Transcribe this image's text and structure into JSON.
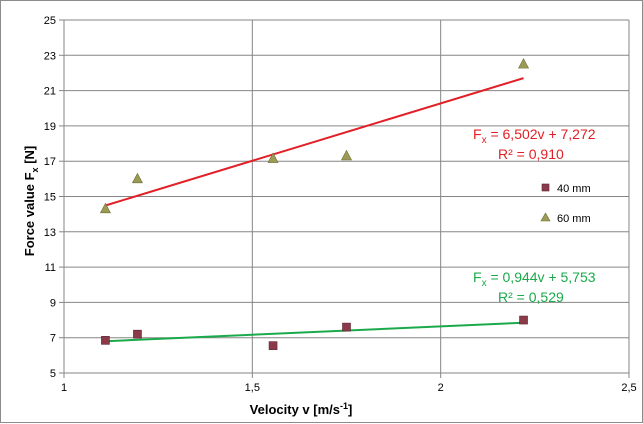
{
  "chart_data": {
    "type": "scatter",
    "xlabel": "Velocity v [m/s",
    "xlabel_sup": "-1",
    "xlabel_end": "]",
    "ylabel": "Force value F",
    "ylabel_sub": "x",
    "ylabel_end": " [N]",
    "xlim": [
      1,
      2.5
    ],
    "ylim": [
      5,
      25
    ],
    "x_ticks": [
      "1",
      "1,5",
      "2",
      "2,5"
    ],
    "x_tick_values": [
      1,
      1.5,
      2,
      2.5
    ],
    "y_ticks": [
      "5",
      "7",
      "9",
      "11",
      "13",
      "15",
      "17",
      "19",
      "21",
      "23",
      "25"
    ],
    "y_tick_values": [
      5,
      7,
      9,
      11,
      13,
      15,
      17,
      19,
      21,
      23,
      25
    ],
    "grid": "vertical-and-horizontal-major",
    "legend_position": "right",
    "series": [
      {
        "name": "40 mm",
        "marker": "square",
        "color": "#8B3A4A",
        "x": [
          1.11,
          1.195,
          1.555,
          1.75,
          2.22
        ],
        "y": [
          6.85,
          7.2,
          6.55,
          7.6,
          8.0
        ],
        "trend": {
          "slope": 0.944,
          "intercept": 5.753,
          "x_range": [
            1.11,
            2.22
          ],
          "color": "#1BAA4B",
          "equation_main": "F",
          "equation_sub": "x",
          "equation_rest": " = 0,944v + 5,753",
          "r2": "R² = 0,529"
        }
      },
      {
        "name": "60 mm",
        "marker": "triangle",
        "color": "#9B9B55",
        "x": [
          1.11,
          1.195,
          1.555,
          1.75,
          2.22
        ],
        "y": [
          14.3,
          16.0,
          17.15,
          17.3,
          22.5
        ],
        "trend": {
          "slope": 6.502,
          "intercept": 7.272,
          "x_range": [
            1.11,
            2.22
          ],
          "color": "#E21F26",
          "equation_main": "F",
          "equation_sub": "x",
          "equation_rest": " = 6,502v + 7,272",
          "r2": "R² = 0,910"
        }
      }
    ]
  }
}
